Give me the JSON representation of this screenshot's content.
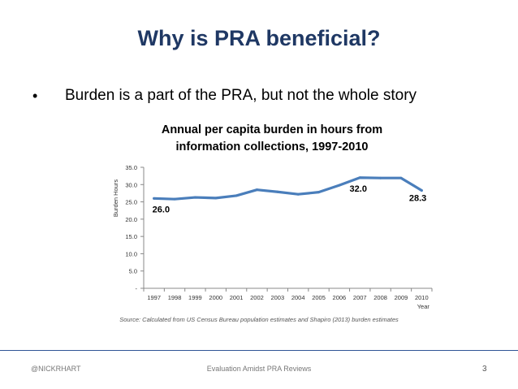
{
  "slide": {
    "title": "Why is PRA beneficial?",
    "bullet_marker": "•",
    "bullet": "Burden is a part of the PRA, but not the whole story"
  },
  "chart_data": {
    "type": "line",
    "title_line1": "Annual per capita burden in hours from",
    "title_line2": "information collections, 1997-2010",
    "xlabel": "Year",
    "ylabel": "Burden Hours",
    "x": [
      "1997",
      "1998",
      "1999",
      "2000",
      "2001",
      "2002",
      "2003",
      "2004",
      "2005",
      "2006",
      "2007",
      "2008",
      "2009",
      "2010"
    ],
    "series": [
      {
        "values": [
          26.0,
          25.8,
          26.3,
          26.1,
          26.8,
          28.5,
          27.9,
          27.2,
          27.8,
          29.8,
          32.0,
          31.9,
          31.9,
          28.3
        ],
        "color": "#4a7ebb"
      }
    ],
    "y_ticks": [
      "-",
      "5.0",
      "10.0",
      "15.0",
      "20.0",
      "25.0",
      "30.0",
      "35.0"
    ],
    "ylim": [
      0,
      35
    ],
    "data_labels": [
      {
        "index": 0,
        "text": "26.0"
      },
      {
        "index": 10,
        "text": "32.0"
      },
      {
        "index": 13,
        "text": "28.3"
      }
    ],
    "grid": false
  },
  "source": "Source:  Calculated from US Census Bureau population estimates and Shapiro (2013) burden estimates",
  "footer": {
    "left": "@NICKRHART",
    "center": "Evaluation Amidst PRA Reviews",
    "page": "3"
  }
}
